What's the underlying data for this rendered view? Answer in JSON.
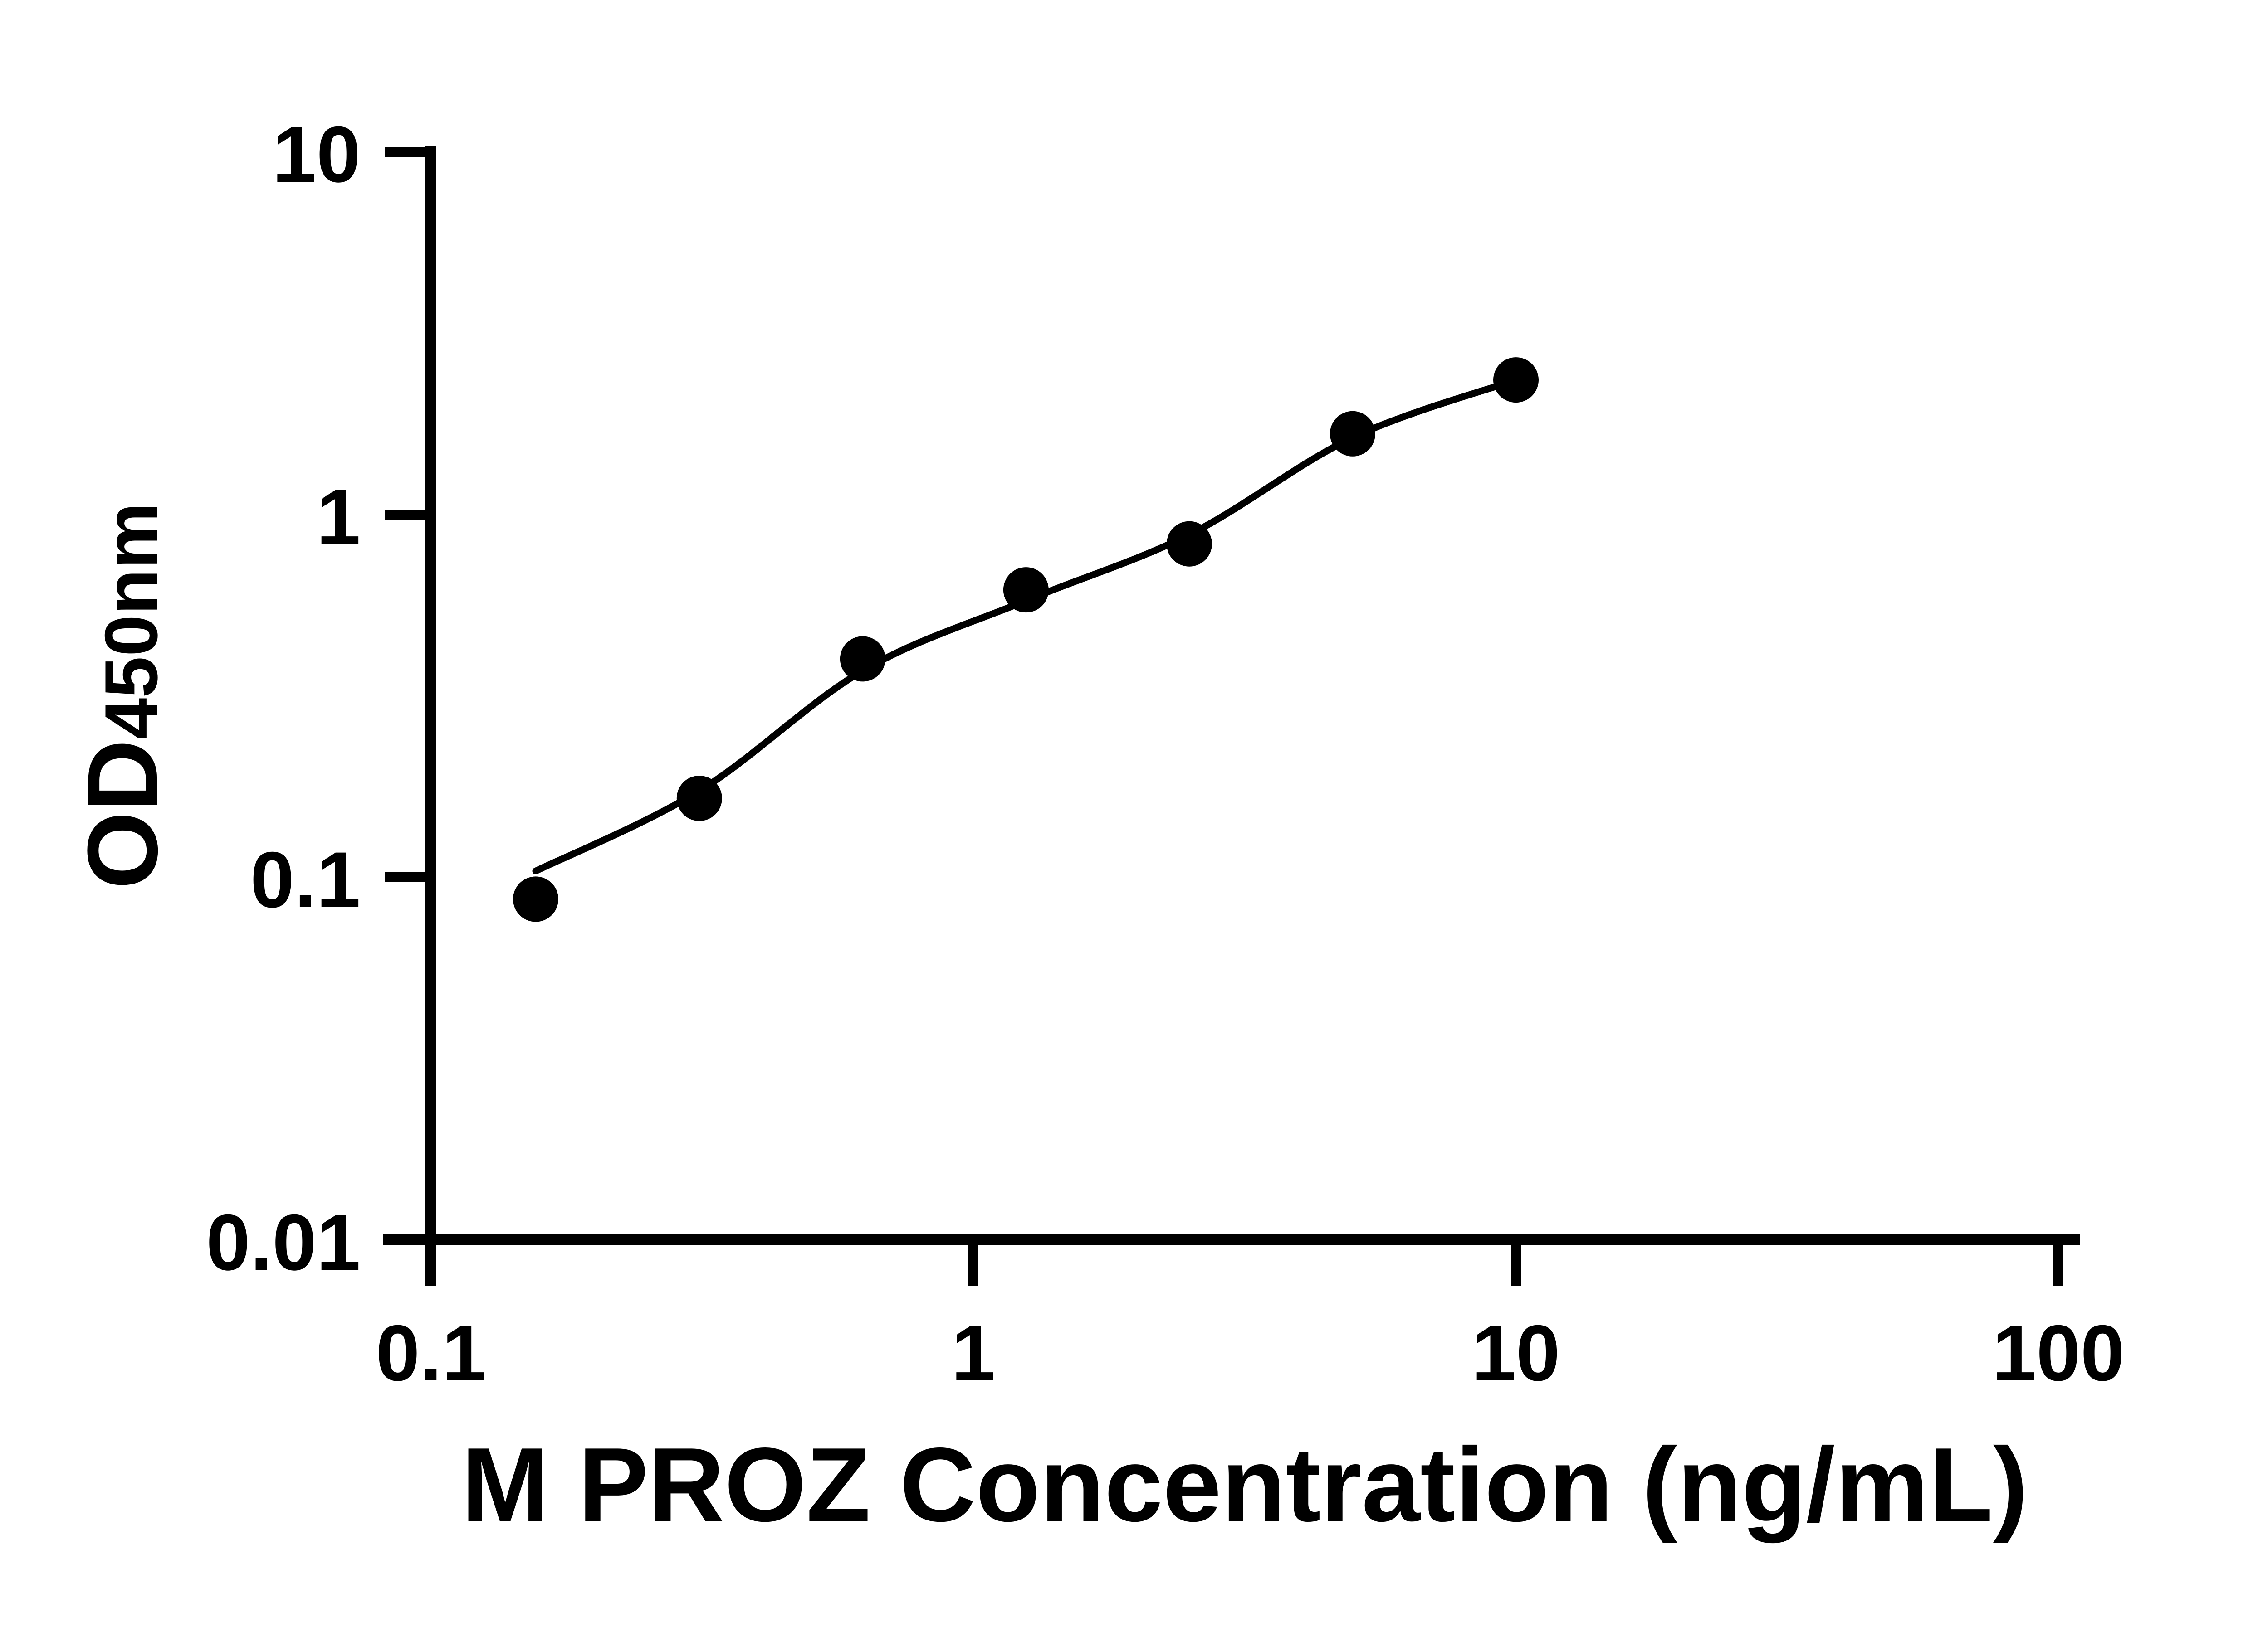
{
  "figure": {
    "background_color": "#ffffff",
    "ink_color": "#000000"
  },
  "chart_data": {
    "type": "scatter",
    "title": "",
    "xlabel": "M PROZ Concentration (ng/mL)",
    "ylabel_main": "OD",
    "ylabel_sub": "450nm",
    "x_scale": "log10",
    "y_scale": "log10",
    "xlim": [
      0.1,
      100
    ],
    "ylim": [
      0.01,
      10
    ],
    "grid": false,
    "legend_position": "none",
    "x_ticks": [
      {
        "value": 0.1,
        "label": "0.1"
      },
      {
        "value": 1,
        "label": "1"
      },
      {
        "value": 10,
        "label": "10"
      },
      {
        "value": 100,
        "label": "100"
      }
    ],
    "y_ticks": [
      {
        "value": 10,
        "label": "10"
      },
      {
        "value": 1,
        "label": "1"
      },
      {
        "value": 0.1,
        "label": "0.1"
      },
      {
        "value": 0.01,
        "label": "0.01"
      }
    ],
    "series": [
      {
        "name": "M PROZ standard curve",
        "marker": "filled-circle",
        "color": "#000000",
        "points": [
          {
            "x": 0.156,
            "od": 0.087
          },
          {
            "x": 0.3125,
            "od": 0.165
          },
          {
            "x": 0.625,
            "od": 0.4
          },
          {
            "x": 1.25,
            "od": 0.62
          },
          {
            "x": 2.5,
            "od": 0.83
          },
          {
            "x": 5,
            "od": 1.67
          },
          {
            "x": 10,
            "od": 2.35
          }
        ]
      }
    ],
    "fit_curve": {
      "name": "4PL fit line",
      "color": "#000000",
      "x": [
        0.156,
        0.3125,
        0.625,
        1.25,
        2.5,
        5,
        10
      ],
      "od": [
        0.104,
        0.173,
        0.371,
        0.579,
        0.88,
        1.63,
        2.35
      ]
    }
  }
}
